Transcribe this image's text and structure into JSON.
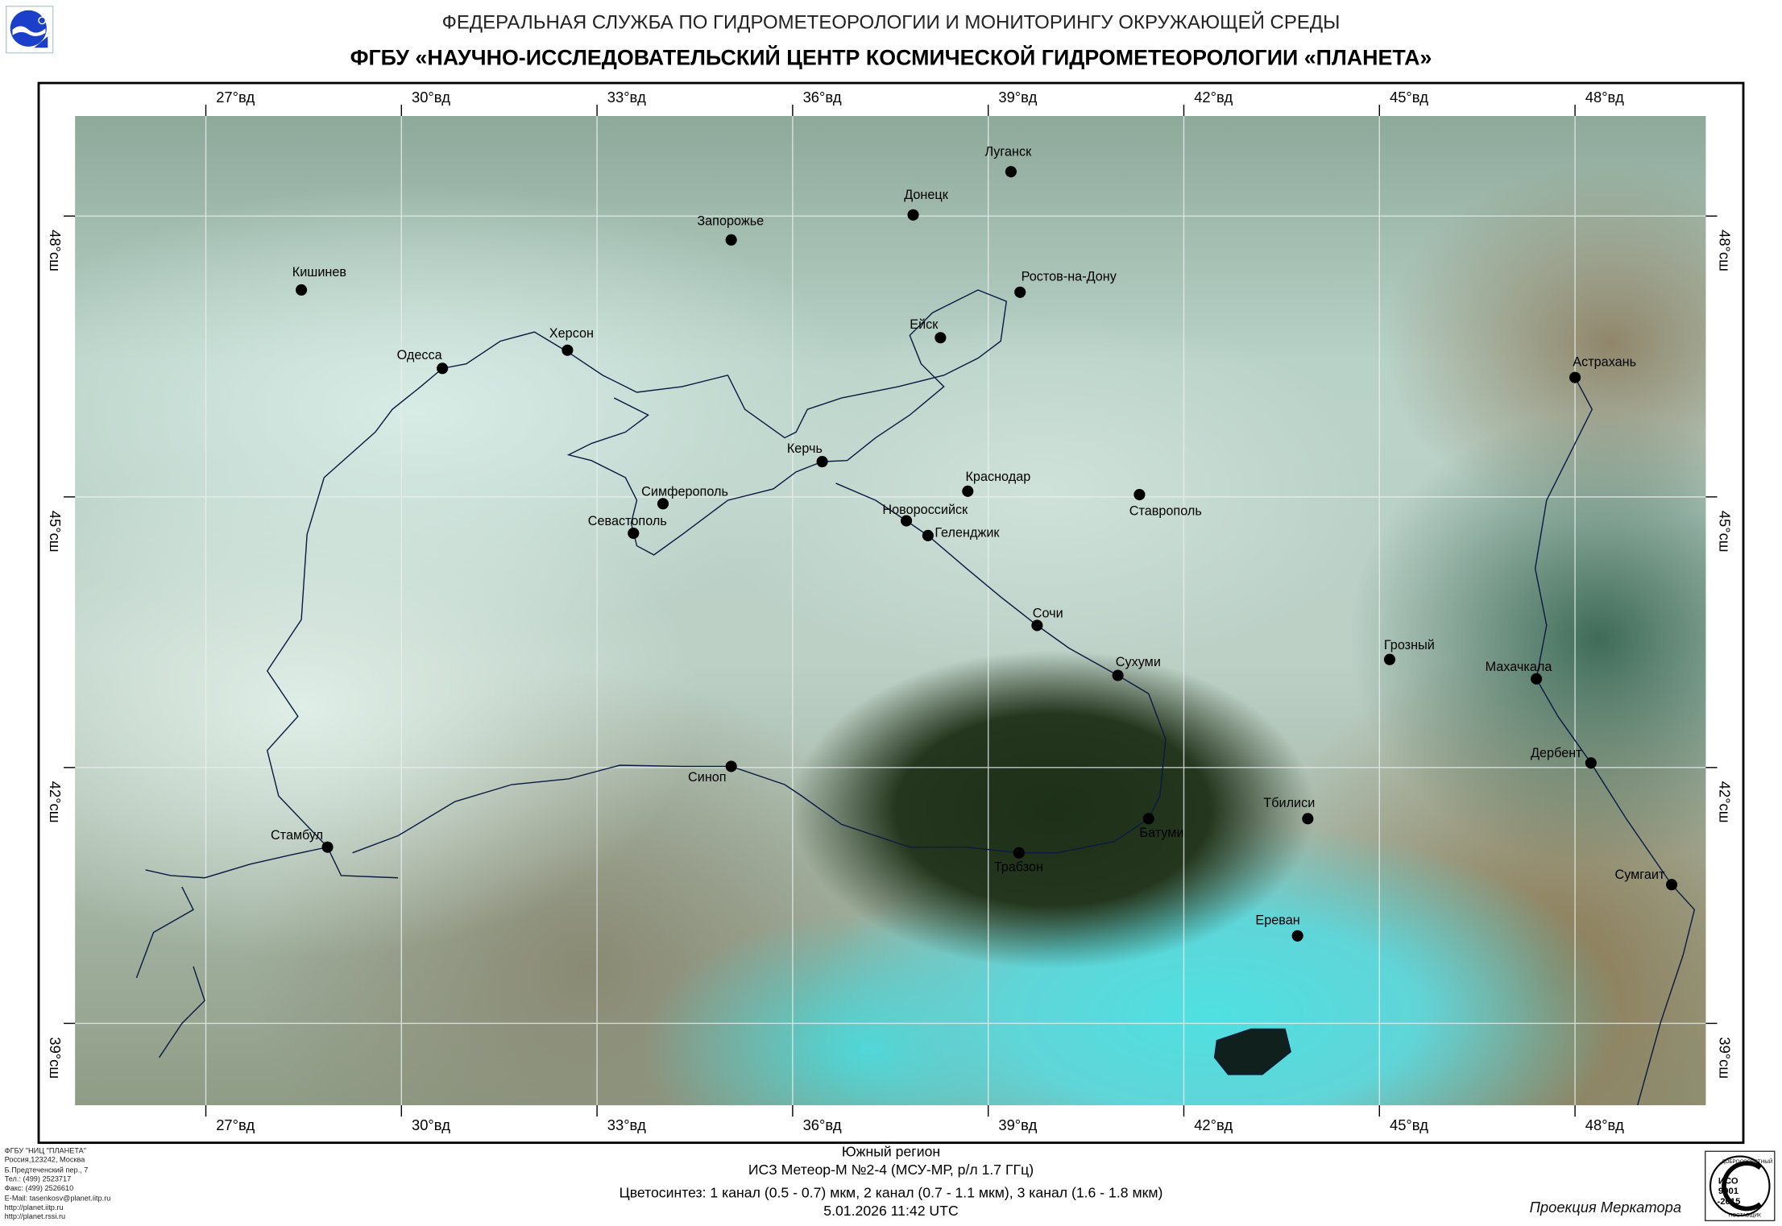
{
  "header": {
    "line1": "ФЕДЕРАЛЬНАЯ СЛУЖБА ПО ГИДРОМЕТЕОРОЛОГИИ И МОНИТОРИНГУ ОКРУЖАЮЩЕЙ СРЕДЫ",
    "line2": "ФГБУ «НАУЧНО-ИССЛЕДОВАТЕЛЬСКИЙ ЦЕНТР КОСМИЧЕСКОЙ ГИДРОМЕТЕОРОЛОГИИ «ПЛАНЕТА»"
  },
  "logo": {
    "icon": "planeta-logo"
  },
  "grid": {
    "longitudes": [
      "27°вд",
      "30°вд",
      "33°вд",
      "36°вд",
      "39°вд",
      "42°вд",
      "45°вд",
      "48°вд"
    ],
    "latitudes": [
      "48°сш",
      "45°сш",
      "42°сш",
      "39°сш"
    ]
  },
  "cities": [
    "Луганск",
    "Донецк",
    "Запорожье",
    "Кишинев",
    "Ростов-на-Дону",
    "Ейск",
    "Херсон",
    "Одесса",
    "Астрахань",
    "Керчь",
    "Краснодар",
    "Ставрополь",
    "Симферополь",
    "Новороссийск",
    "Севастополь",
    "Геленджик",
    "Сочи",
    "Сухуми",
    "Грозный",
    "Махачкала",
    "Дербент",
    "Синоп",
    "Тбилиси",
    "Батуми",
    "Стамбул",
    "Трабзон",
    "Сумгаит",
    "Ереван"
  ],
  "address": [
    "ФГБУ \"НИЦ \"ПЛАНЕТА\"",
    "Россия,123242, Москва",
    "Б.Предтеченский пер., 7",
    "Тел.:  (499) 2523717",
    "Факс: (499) 2526610",
    "E-Mail: tasenkosv@planet.iitp.ru",
    "http://planet.iitp.ru",
    "http://planet.rssi.ru"
  ],
  "footer": {
    "region": "Южный регион",
    "satellite": "ИСЗ Метеор-М №2-4 (МСУ-МР, р/л 1.7 ГГц)",
    "channels": "Цветосинтез: 1 канал (0.5 - 0.7) мкм, 2 канал (0.7 - 1.1 мкм), 3 канал (1.6 - 1.8 мкм)",
    "datetime": "5.01.2026  11:42 UTC",
    "projection": "Проекция Меркатора"
  },
  "iso_badge": {
    "top": "ДОБРОСОВЕСТНЫЙ",
    "iso": "ИСО",
    "num": "9001",
    "year": "-2015",
    "bottom": "ПОСТАВЩИК"
  }
}
